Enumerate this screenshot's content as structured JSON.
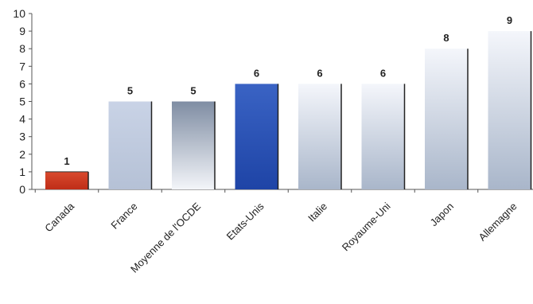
{
  "chart_data": {
    "type": "bar",
    "categories": [
      "Canada",
      "France",
      "Moyenne de l'OCDE",
      "Etats-Unis",
      "Italie",
      "Royaume-Uni",
      "Japon",
      "Allemagne"
    ],
    "values": [
      1,
      5,
      5,
      6,
      6,
      6,
      8,
      9
    ],
    "data_labels": [
      "1",
      "5",
      "5",
      "6",
      "6",
      "6",
      "8",
      "9"
    ],
    "title": "",
    "xlabel": "",
    "ylabel": "",
    "ylim": [
      0,
      10
    ],
    "yticks": [
      "0",
      "1",
      "2",
      "3",
      "4",
      "5",
      "6",
      "7",
      "8",
      "9",
      "10"
    ],
    "grid": false,
    "legend": "none",
    "colors": {
      "canada": "#d13a22",
      "etats_unis": "#2f56b8",
      "moyenne": "#8f9db1",
      "default_light": "#f2f5fa",
      "default_dark": "#a6b4c9"
    }
  }
}
